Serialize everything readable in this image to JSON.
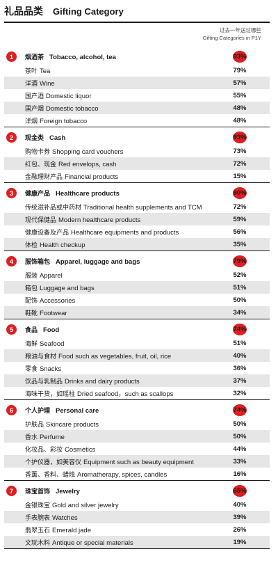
{
  "title": {
    "zh": "礼品品类",
    "en": "Gifting Category"
  },
  "column_header": {
    "line1": "过去一年送过哪些",
    "line2": "Gifting Categories in P1Y"
  },
  "chart_data": {
    "type": "table",
    "title": "礼品品类  Gifting Category",
    "value_header": "Gifting Categories in P1Y",
    "groups": [
      {
        "num": "1",
        "zh": "烟酒茶",
        "en": "Tobacco, alcohol, tea",
        "value": "93%",
        "items": [
          {
            "zh": "茶叶",
            "en": "Tea",
            "value": "79%"
          },
          {
            "zh": "洋酒",
            "en": "Wine",
            "value": "57%"
          },
          {
            "zh": "国产酒",
            "en": "Domestic liquor",
            "value": "55%"
          },
          {
            "zh": "国产烟",
            "en": "Domestic tobacco",
            "value": "48%"
          },
          {
            "zh": "洋烟",
            "en": "Foreign tobacco",
            "value": "48%"
          }
        ]
      },
      {
        "num": "2",
        "zh": "现金类",
        "en": "Cash",
        "value": "93%",
        "items": [
          {
            "zh": "购物卡券",
            "en": "Shopping card vouchers",
            "value": "73%"
          },
          {
            "zh": "红包、现金",
            "en": "Red envelops, cash",
            "value": "72%"
          },
          {
            "zh": "金融理财产品",
            "en": "Financial products",
            "value": "15%"
          }
        ]
      },
      {
        "num": "3",
        "zh": "健康产品",
        "en": "Healthcare products",
        "value": "90%",
        "items": [
          {
            "zh": "传统滋补品或中药材",
            "en": "Traditional health supplements and TCM",
            "value": "72%"
          },
          {
            "zh": "现代保健品",
            "en": "Modern healthcare products",
            "value": "59%"
          },
          {
            "zh": "健康设备及产品",
            "en": "Healthcare equipments and products",
            "value": "56%"
          },
          {
            "zh": "体检",
            "en": "Health checkup",
            "value": "35%"
          }
        ]
      },
      {
        "num": "4",
        "zh": "服饰箱包",
        "en": "Apparel, luggage and bags",
        "value": "79%",
        "items": [
          {
            "zh": "服装",
            "en": "Apparel",
            "value": "52%"
          },
          {
            "zh": "箱包",
            "en": "Luggage and bags",
            "value": "51%"
          },
          {
            "zh": "配饰",
            "en": "Accessories",
            "value": "50%"
          },
          {
            "zh": "鞋靴",
            "en": "Footwear",
            "value": "34%"
          }
        ]
      },
      {
        "num": "5",
        "zh": "食品",
        "en": "Food",
        "value": "74%",
        "items": [
          {
            "zh": "海鲜",
            "en": "Seafood",
            "value": "51%"
          },
          {
            "zh": "粮油与食材",
            "en": "Food such as vegetables, fruit, oil, rice",
            "value": "40%"
          },
          {
            "zh": "零食",
            "en": "Snacks",
            "value": "36%"
          },
          {
            "zh": "饮品与乳制品",
            "en": "Drinks and dairy products",
            "value": "37%"
          },
          {
            "zh": "海味干货，如瑶柱",
            "en": "Dried seafood，such as scallops",
            "value": "32%"
          }
        ]
      },
      {
        "num": "6",
        "zh": "个人护理",
        "en": "Personal care",
        "value": "74%",
        "items": [
          {
            "zh": "护肤品",
            "en": "Skincare products",
            "value": "50%"
          },
          {
            "zh": "香水",
            "en": "Perfume",
            "value": "50%"
          },
          {
            "zh": "化妆品、彩妆",
            "en": "Cosmetics",
            "value": "44%"
          },
          {
            "zh": "个护仪器，如美容仪",
            "en": "Equipment such as beauty equipment",
            "value": "33%"
          },
          {
            "zh": "香薰、香料、蜡烛",
            "en": "Aromatherapy, spices, candles",
            "value": "16%"
          }
        ]
      },
      {
        "num": "7",
        "zh": "珠宝首饰",
        "en": "Jewelry",
        "value": "65%",
        "items": [
          {
            "zh": "金银珠宝",
            "en": "Gold and silver jewelry",
            "value": "40%"
          },
          {
            "zh": "手表腕表",
            "en": "Watches",
            "value": "39%"
          },
          {
            "zh": "翡翠玉石",
            "en": "Emerald jade",
            "value": "26%"
          },
          {
            "zh": "文玩木料",
            "en": "Antique or special materials",
            "value": "19%"
          }
        ]
      }
    ]
  },
  "colors": {
    "accent": "#e01e22",
    "row_shade": "#e6e6e6",
    "text": "#1a1a1a"
  }
}
